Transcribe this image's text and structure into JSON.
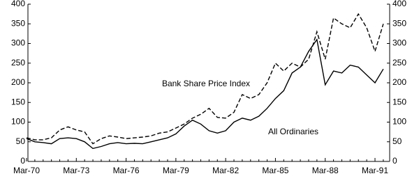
{
  "chart_data": {
    "type": "line",
    "x": [
      "Mar-70",
      null,
      null,
      null,
      null,
      null,
      "Mar-73",
      null,
      null,
      null,
      null,
      null,
      "Mar-76",
      null,
      null,
      null,
      null,
      null,
      "Mar-79",
      null,
      null,
      null,
      null,
      null,
      "Mar-82",
      null,
      null,
      null,
      null,
      null,
      "Mar-85",
      null,
      null,
      null,
      null,
      null,
      "Mar-88",
      null,
      null,
      null,
      null,
      null,
      "Mar-91",
      null
    ],
    "series": [
      {
        "name": "All Ordinaries",
        "color": "#000000",
        "dash": false,
        "values": [
          58,
          50,
          48,
          45,
          58,
          60,
          58,
          50,
          33,
          38,
          45,
          48,
          45,
          46,
          45,
          50,
          55,
          60,
          70,
          90,
          105,
          95,
          78,
          72,
          78,
          100,
          110,
          105,
          115,
          135,
          160,
          180,
          225,
          240,
          280,
          310,
          195,
          230,
          225,
          245,
          240,
          220,
          200,
          235
        ]
      },
      {
        "name": "Bank Share Price Index",
        "color": "#000000",
        "dash": true,
        "values": [
          60,
          55,
          55,
          60,
          80,
          88,
          80,
          75,
          45,
          58,
          65,
          62,
          58,
          60,
          62,
          65,
          72,
          75,
          85,
          95,
          110,
          120,
          135,
          112,
          110,
          125,
          170,
          160,
          170,
          200,
          250,
          230,
          250,
          240,
          260,
          330,
          260,
          365,
          350,
          340,
          375,
          340,
          280,
          350
        ]
      }
    ],
    "ylim": [
      0,
      400
    ],
    "yticks": [
      0,
      50,
      100,
      150,
      200,
      250,
      300,
      350,
      400
    ],
    "y2lim": [
      0,
      400
    ],
    "y2ticks": [
      0,
      50,
      100,
      150,
      200,
      250,
      300,
      350,
      400
    ],
    "grid": false
  }
}
